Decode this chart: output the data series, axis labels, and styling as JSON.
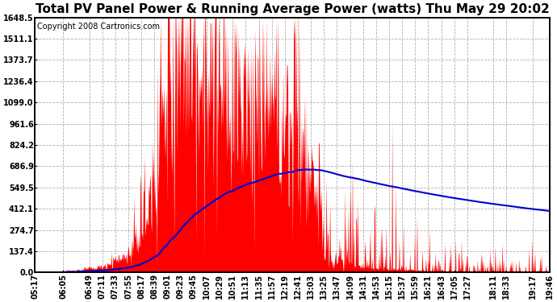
{
  "title": "Total PV Panel Power & Running Average Power (watts) Thu May 29 20:02",
  "copyright_text": "Copyright 2008 Cartronics.com",
  "background_color": "#ffffff",
  "plot_bg_color": "#ffffff",
  "grid_color": "#b0b0b0",
  "fill_color": "#ff0000",
  "line_color": "#0000cc",
  "ymin": 0.0,
  "ymax": 1648.5,
  "ytick_labels": [
    "0.0",
    "137.4",
    "274.7",
    "412.1",
    "549.5",
    "686.9",
    "824.2",
    "961.6",
    "1099.0",
    "1236.4",
    "1373.7",
    "1511.1",
    "1648.5"
  ],
  "ytick_values": [
    0.0,
    137.4,
    274.7,
    412.1,
    549.5,
    686.9,
    824.2,
    961.6,
    1099.0,
    1236.4,
    1373.7,
    1511.1,
    1648.5
  ],
  "xtick_labels": [
    "05:17",
    "06:05",
    "06:49",
    "07:11",
    "07:33",
    "07:55",
    "08:17",
    "08:39",
    "09:01",
    "09:23",
    "09:45",
    "10:07",
    "10:29",
    "10:51",
    "11:13",
    "11:35",
    "11:57",
    "12:19",
    "12:41",
    "13:03",
    "13:25",
    "13:47",
    "14:09",
    "14:31",
    "14:53",
    "15:15",
    "15:37",
    "15:59",
    "16:21",
    "16:43",
    "17:05",
    "17:27",
    "18:11",
    "18:33",
    "19:17",
    "19:46"
  ],
  "title_fontsize": 11,
  "copyright_fontsize": 7,
  "tick_fontsize": 7
}
